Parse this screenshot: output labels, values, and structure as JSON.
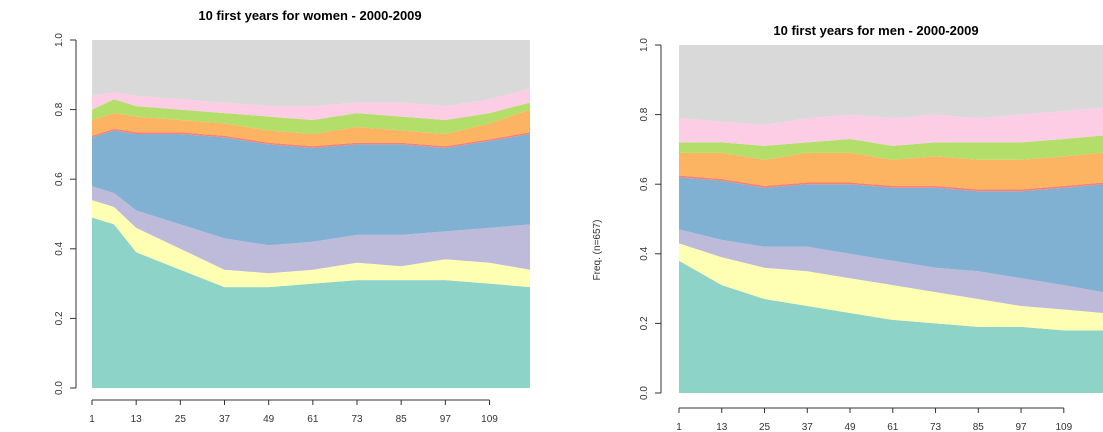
{
  "chart_data": [
    {
      "type": "area",
      "title": "10 first years for women - 2000-2009",
      "xlabel": "",
      "ylabel": "",
      "ylim": [
        0,
        1
      ],
      "xlim": [
        1,
        120
      ],
      "x_ticks": [
        "1",
        "13",
        "25",
        "37",
        "49",
        "61",
        "73",
        "85",
        "97",
        "109"
      ],
      "y_ticks": [
        "0.0",
        "0.2",
        "0.4",
        "0.6",
        "0.8",
        "1.0"
      ],
      "x": [
        1,
        7,
        13,
        25,
        37,
        49,
        61,
        73,
        85,
        97,
        109,
        120
      ],
      "cumulative": [
        {
          "color": "#8dd3c7",
          "values": [
            0.49,
            0.47,
            0.39,
            0.34,
            0.29,
            0.29,
            0.3,
            0.31,
            0.31,
            0.31,
            0.3,
            0.29
          ]
        },
        {
          "color": "#ffffb3",
          "values": [
            0.54,
            0.52,
            0.46,
            0.4,
            0.34,
            0.33,
            0.34,
            0.36,
            0.35,
            0.37,
            0.36,
            0.34
          ]
        },
        {
          "color": "#bebada",
          "values": [
            0.58,
            0.56,
            0.51,
            0.47,
            0.43,
            0.41,
            0.42,
            0.44,
            0.44,
            0.45,
            0.46,
            0.47
          ]
        },
        {
          "color": "#80b1d3",
          "values": [
            0.72,
            0.74,
            0.73,
            0.73,
            0.72,
            0.7,
            0.69,
            0.7,
            0.7,
            0.69,
            0.71,
            0.73
          ]
        },
        {
          "color": "#fb8072",
          "values": [
            0.725,
            0.745,
            0.735,
            0.735,
            0.725,
            0.705,
            0.695,
            0.705,
            0.705,
            0.695,
            0.715,
            0.735
          ]
        },
        {
          "color": "#fdb462",
          "values": [
            0.77,
            0.79,
            0.78,
            0.77,
            0.76,
            0.74,
            0.73,
            0.75,
            0.74,
            0.73,
            0.76,
            0.8
          ]
        },
        {
          "color": "#b3de69",
          "values": [
            0.8,
            0.83,
            0.81,
            0.8,
            0.79,
            0.78,
            0.77,
            0.79,
            0.78,
            0.77,
            0.79,
            0.82
          ]
        },
        {
          "color": "#fccde5",
          "values": [
            0.84,
            0.85,
            0.84,
            0.83,
            0.82,
            0.81,
            0.81,
            0.82,
            0.82,
            0.81,
            0.83,
            0.86
          ]
        },
        {
          "color": "#d9d9d9",
          "values": [
            1,
            1,
            1,
            1,
            1,
            1,
            1,
            1,
            1,
            1,
            1,
            1
          ]
        }
      ]
    },
    {
      "type": "area",
      "title": "10 first years for men - 2000-2009",
      "xlabel": "",
      "ylabel": "Freq. (n=657)",
      "ylim": [
        0,
        1
      ],
      "xlim": [
        1,
        120
      ],
      "x_ticks": [
        "1",
        "13",
        "25",
        "37",
        "49",
        "61",
        "73",
        "85",
        "97",
        "109"
      ],
      "y_ticks": [
        "0.0",
        "0.2",
        "0.4",
        "0.6",
        "0.8",
        "1.0"
      ],
      "x": [
        1,
        13,
        25,
        37,
        49,
        61,
        73,
        85,
        97,
        109,
        120
      ],
      "cumulative": [
        {
          "color": "#8dd3c7",
          "values": [
            0.38,
            0.31,
            0.27,
            0.25,
            0.23,
            0.21,
            0.2,
            0.19,
            0.19,
            0.18,
            0.18
          ]
        },
        {
          "color": "#ffffb3",
          "values": [
            0.43,
            0.39,
            0.36,
            0.35,
            0.33,
            0.31,
            0.29,
            0.27,
            0.25,
            0.24,
            0.23
          ]
        },
        {
          "color": "#bebada",
          "values": [
            0.47,
            0.44,
            0.42,
            0.42,
            0.4,
            0.38,
            0.36,
            0.35,
            0.33,
            0.31,
            0.29
          ]
        },
        {
          "color": "#80b1d3",
          "values": [
            0.62,
            0.61,
            0.59,
            0.6,
            0.6,
            0.59,
            0.59,
            0.58,
            0.58,
            0.59,
            0.6
          ]
        },
        {
          "color": "#fb8072",
          "values": [
            0.625,
            0.615,
            0.595,
            0.605,
            0.605,
            0.595,
            0.595,
            0.585,
            0.585,
            0.595,
            0.605
          ]
        },
        {
          "color": "#fdb462",
          "values": [
            0.69,
            0.69,
            0.67,
            0.69,
            0.69,
            0.67,
            0.68,
            0.67,
            0.67,
            0.68,
            0.69
          ]
        },
        {
          "color": "#b3de69",
          "values": [
            0.72,
            0.72,
            0.71,
            0.72,
            0.73,
            0.71,
            0.72,
            0.72,
            0.72,
            0.73,
            0.74
          ]
        },
        {
          "color": "#fccde5",
          "values": [
            0.79,
            0.78,
            0.77,
            0.79,
            0.8,
            0.79,
            0.8,
            0.79,
            0.8,
            0.81,
            0.82
          ]
        },
        {
          "color": "#d9d9d9",
          "values": [
            1,
            1,
            1,
            1,
            1,
            1,
            1,
            1,
            1,
            1,
            1
          ]
        }
      ]
    }
  ]
}
